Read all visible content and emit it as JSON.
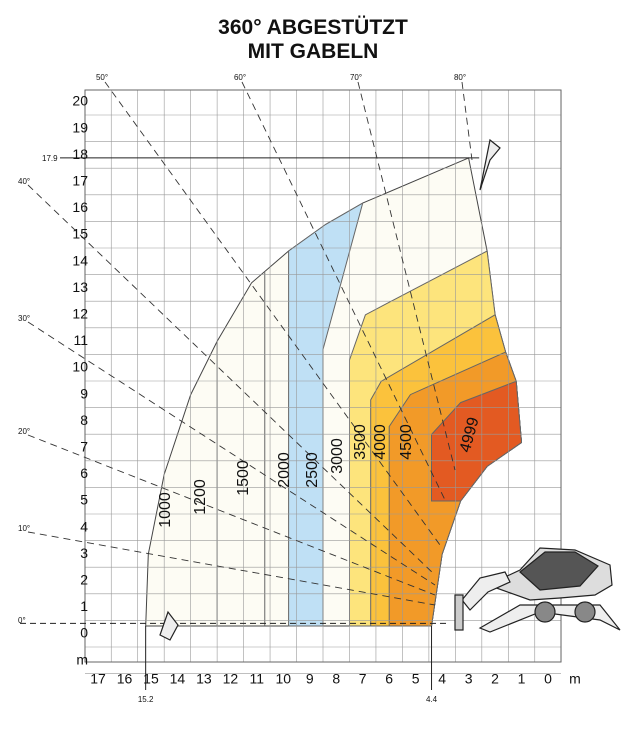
{
  "title": {
    "line1": "360° ABGESTÜTZT",
    "line2": "MIT GABELN"
  },
  "y_labels": [
    "20",
    "19",
    "18",
    "17",
    "16",
    "15",
    "14",
    "13",
    "12",
    "11",
    "10",
    "9",
    "8",
    "7",
    "6",
    "5",
    "4",
    "3",
    "2",
    "1",
    "0",
    "m"
  ],
  "x_labels": [
    "17",
    "16",
    "15",
    "14",
    "13",
    "12",
    "11",
    "10",
    "9",
    "8",
    "7",
    "6",
    "5",
    "4",
    "3",
    "2",
    "1",
    "0",
    "m"
  ],
  "angle_labels": {
    "top": [
      "50°",
      "60°",
      "70°",
      "80°"
    ],
    "left": [
      "40°",
      "30°",
      "20°",
      "10°",
      "0°"
    ]
  },
  "capacities": [
    "1000",
    "1200",
    "1500",
    "2000",
    "2500",
    "3000",
    "3500",
    "4000",
    "4500",
    "4999"
  ],
  "markers": {
    "max_height": "17.9",
    "max_reach": "15.2",
    "min_reach": "4.4"
  }
}
